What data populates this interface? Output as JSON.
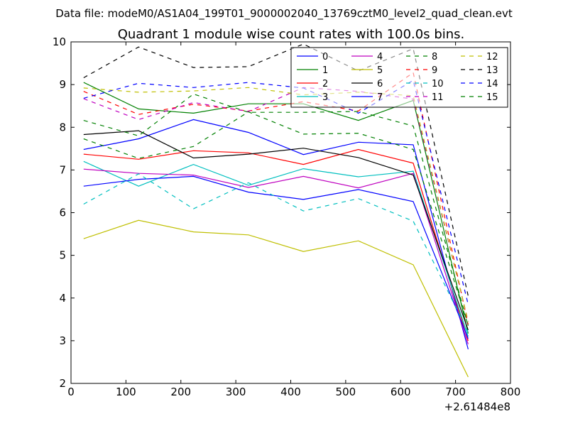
{
  "figure": {
    "suptitle": "Data file: modeM0/AS1A04_199T01_9000002040_13769cztM0_level2_quad_clean.evt"
  },
  "chart_data": {
    "type": "line",
    "title": "Quadrant 1 module wise count rates with 100.0s bins.",
    "xlabel": "",
    "ylabel": "",
    "x_offset_label": "+2.61484e8",
    "xlim": [
      0,
      800
    ],
    "ylim": [
      2,
      10
    ],
    "xticks": [
      "0",
      "100",
      "200",
      "300",
      "400",
      "500",
      "600",
      "700",
      "800"
    ],
    "yticks": [
      "2",
      "3",
      "4",
      "5",
      "6",
      "7",
      "8",
      "9",
      "10"
    ],
    "grid": false,
    "legend_location": "upper right",
    "legend_columns": 4,
    "x": [
      23,
      123,
      223,
      323,
      423,
      523,
      623,
      723
    ],
    "series": [
      {
        "name": "0",
        "color": "#0000ff",
        "dash": "solid",
        "values": [
          7.48,
          7.73,
          8.18,
          7.88,
          7.36,
          7.65,
          7.59,
          2.8
        ]
      },
      {
        "name": "1",
        "color": "#008000",
        "dash": "solid",
        "values": [
          9.05,
          8.43,
          8.33,
          8.55,
          8.55,
          8.16,
          8.63,
          3.17
        ]
      },
      {
        "name": "2",
        "color": "#ff0000",
        "dash": "solid",
        "values": [
          7.37,
          7.25,
          7.45,
          7.4,
          7.13,
          7.48,
          7.16,
          3.0
        ]
      },
      {
        "name": "3",
        "color": "#00bfbf",
        "dash": "solid",
        "values": [
          7.2,
          6.62,
          7.13,
          6.64,
          7.03,
          6.84,
          6.97,
          3.1
        ]
      },
      {
        "name": "4",
        "color": "#bf00bf",
        "dash": "solid",
        "values": [
          7.02,
          6.92,
          6.88,
          6.59,
          6.85,
          6.58,
          6.92,
          2.92
        ]
      },
      {
        "name": "5",
        "color": "#bfbf00",
        "dash": "solid",
        "values": [
          5.39,
          5.82,
          5.55,
          5.48,
          5.09,
          5.34,
          4.78,
          2.15
        ]
      },
      {
        "name": "6",
        "color": "#000000",
        "dash": "solid",
        "values": [
          7.83,
          7.92,
          7.28,
          7.37,
          7.51,
          7.29,
          6.88,
          3.25
        ]
      },
      {
        "name": "7",
        "color": "#0000ff",
        "dash": "solid",
        "values": [
          6.62,
          6.78,
          6.85,
          6.48,
          6.31,
          6.54,
          6.26,
          3.05
        ]
      },
      {
        "name": "8",
        "color": "#008000",
        "dash": "dashed",
        "values": [
          8.16,
          7.8,
          8.78,
          8.35,
          8.35,
          8.37,
          8.03,
          3.35
        ]
      },
      {
        "name": "9",
        "color": "#ff0000",
        "dash": "dashed",
        "values": [
          8.84,
          8.3,
          8.54,
          8.38,
          8.6,
          8.38,
          9.28,
          3.38
        ]
      },
      {
        "name": "10",
        "color": "#00bfbf",
        "dash": "dashed",
        "values": [
          6.2,
          6.91,
          6.09,
          6.7,
          6.04,
          6.33,
          5.8,
          3.2
        ]
      },
      {
        "name": "11",
        "color": "#bf00bf",
        "dash": "dashed",
        "values": [
          8.67,
          8.18,
          8.58,
          8.37,
          8.93,
          8.84,
          8.66,
          3.45
        ]
      },
      {
        "name": "12",
        "color": "#bfbf00",
        "dash": "dashed",
        "values": [
          8.92,
          8.82,
          8.85,
          8.93,
          8.76,
          8.82,
          8.74,
          3.45
        ]
      },
      {
        "name": "13",
        "color": "#000000",
        "dash": "dashed",
        "values": [
          9.16,
          9.88,
          9.4,
          9.42,
          9.95,
          9.32,
          9.84,
          4.05
        ]
      },
      {
        "name": "14",
        "color": "#0000ff",
        "dash": "dashed",
        "values": [
          8.68,
          9.03,
          8.93,
          9.05,
          8.92,
          8.33,
          9.1,
          3.85
        ]
      },
      {
        "name": "15",
        "color": "#008000",
        "dash": "dashed",
        "values": [
          7.73,
          7.27,
          7.55,
          8.36,
          7.84,
          7.86,
          7.48,
          3.35
        ]
      }
    ]
  }
}
